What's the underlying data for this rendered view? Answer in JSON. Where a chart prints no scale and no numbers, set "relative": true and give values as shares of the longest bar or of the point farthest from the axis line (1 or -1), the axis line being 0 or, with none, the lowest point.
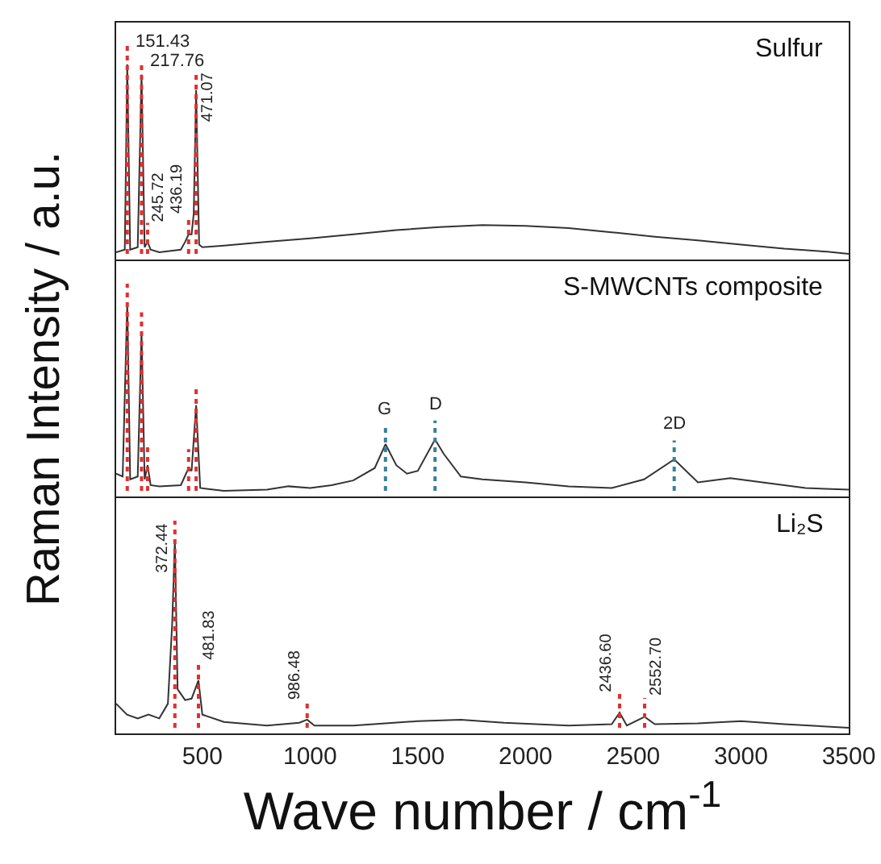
{
  "chart_data": [
    {
      "type": "line",
      "title": "Sulfur",
      "relative": true,
      "color": "#333333",
      "xlim": [
        100,
        3500
      ],
      "tick_labels": false,
      "x": [
        100,
        140,
        151.43,
        165,
        200,
        217.76,
        232,
        245.72,
        260,
        300,
        400,
        420,
        436.19,
        450,
        460,
        471.07,
        485,
        500,
        600,
        800,
        1000,
        1200,
        1400,
        1600,
        1800,
        2000,
        2200,
        2400,
        2600,
        2800,
        3000,
        3200,
        3400,
        3500
      ],
      "values": [
        0.008,
        0.022,
        1,
        0.022,
        0.035,
        0.946,
        0.035,
        0.063,
        0.022,
        0.008,
        0.022,
        0.063,
        0.103,
        0.103,
        0.212,
        0.864,
        0.049,
        0.035,
        0.043,
        0.063,
        0.082,
        0.103,
        0.125,
        0.141,
        0.152,
        0.147,
        0.136,
        0.114,
        0.09,
        0.071,
        0.049,
        0.027,
        0.011,
        0
      ],
      "ref_lines": [
        {
          "axis": "x",
          "value": 151.43,
          "label": "151.43",
          "color": "#e03030",
          "line_style": "dotted"
        },
        {
          "axis": "x",
          "value": 217.76,
          "label": "217.76",
          "color": "#e03030",
          "line_style": "dotted"
        },
        {
          "axis": "x",
          "value": 245.72,
          "label": "245.72",
          "color": "#e03030",
          "line_style": "dotted"
        },
        {
          "axis": "x",
          "value": 436.19,
          "label": "436.19",
          "color": "#e03030",
          "line_style": "dotted"
        },
        {
          "axis": "x",
          "value": 471.07,
          "label": "471.07",
          "color": "#e03030",
          "line_style": "dotted"
        }
      ]
    },
    {
      "type": "line",
      "title": "S-MWCNTs composite",
      "ylabel": "Raman Intensity / a.u.",
      "relative": true,
      "color": "#333333",
      "xlim": [
        100,
        3500
      ],
      "tick_labels": false,
      "x": [
        100,
        130,
        151.43,
        165,
        200,
        217.76,
        232,
        245.72,
        260,
        300,
        400,
        436.19,
        450,
        471.07,
        490,
        600,
        800,
        900,
        1000,
        1100,
        1200,
        1300,
        1350,
        1400,
        1450,
        1500,
        1580,
        1620,
        1700,
        1800,
        2000,
        2200,
        2400,
        2550,
        2690,
        2800,
        2950,
        3100,
        3300,
        3500
      ],
      "values": [
        0.091,
        0.076,
        1,
        0.061,
        0.076,
        0.848,
        0.061,
        0.136,
        0.03,
        0.024,
        0.03,
        0.121,
        0.106,
        0.455,
        0.015,
        0,
        0.006,
        0.024,
        0.015,
        0.03,
        0.055,
        0.121,
        0.248,
        0.136,
        0.091,
        0.106,
        0.273,
        0.197,
        0.076,
        0.061,
        0.045,
        0.024,
        0.015,
        0.061,
        0.167,
        0.045,
        0.067,
        0.045,
        0.015,
        0.006
      ],
      "ref_lines": [
        {
          "axis": "x",
          "value": 151.43,
          "color": "#e03030",
          "line_style": "dotted"
        },
        {
          "axis": "x",
          "value": 217.76,
          "color": "#e03030",
          "line_style": "dotted"
        },
        {
          "axis": "x",
          "value": 245.72,
          "color": "#e03030",
          "line_style": "dotted"
        },
        {
          "axis": "x",
          "value": 436.19,
          "color": "#e03030",
          "line_style": "dotted"
        },
        {
          "axis": "x",
          "value": 471.07,
          "color": "#e03030",
          "line_style": "dotted"
        },
        {
          "axis": "x",
          "value": 1350,
          "label": "G",
          "color": "#3a7f9a",
          "line_style": "dotted"
        },
        {
          "axis": "x",
          "value": 1580,
          "label": "D",
          "color": "#3a7f9a",
          "line_style": "dotted"
        },
        {
          "axis": "x",
          "value": 2690,
          "label": "2D",
          "color": "#3a7f9a",
          "line_style": "dotted"
        }
      ]
    },
    {
      "type": "line",
      "title": "Li₂S",
      "xlabel": "Wave number / cm$^{-1}$",
      "relative": true,
      "color": "#333333",
      "xlim": [
        100,
        3500
      ],
      "xticks": [
        500,
        1000,
        1500,
        2000,
        2500,
        3000,
        3500
      ],
      "tick_labels": "x",
      "x": [
        100,
        150,
        200,
        250,
        300,
        340,
        360,
        372.44,
        385,
        420,
        450,
        481.83,
        500,
        600,
        800,
        950,
        986.48,
        1020,
        1200,
        1500,
        1700,
        1900,
        2200,
        2400,
        2436.6,
        2470,
        2552.7,
        2600,
        2800,
        3000,
        3200,
        3500
      ],
      "values": [
        0.128,
        0.07,
        0.05,
        0.07,
        0.05,
        0.128,
        0.554,
        1,
        0.205,
        0.147,
        0.155,
        0.252,
        0.07,
        0.031,
        0.012,
        0.027,
        0.043,
        0.012,
        0.012,
        0.035,
        0.043,
        0.027,
        0.012,
        0.019,
        0.081,
        0.012,
        0.058,
        0.019,
        0.023,
        0.035,
        0.019,
        0
      ],
      "ref_lines": [
        {
          "axis": "x",
          "value": 372.44,
          "label": "372.44",
          "color": "#e03030",
          "line_style": "dotted"
        },
        {
          "axis": "x",
          "value": 481.83,
          "label": "481.83",
          "color": "#e03030",
          "line_style": "dotted"
        },
        {
          "axis": "x",
          "value": 986.48,
          "label": "986.48",
          "color": "#e03030",
          "line_style": "dotted"
        },
        {
          "axis": "x",
          "value": 2436.6,
          "label": "2436.60",
          "color": "#e03030",
          "line_style": "dotted"
        },
        {
          "axis": "x",
          "value": 2552.7,
          "label": "2552.70",
          "color": "#e03030",
          "line_style": "dotted"
        }
      ]
    }
  ]
}
